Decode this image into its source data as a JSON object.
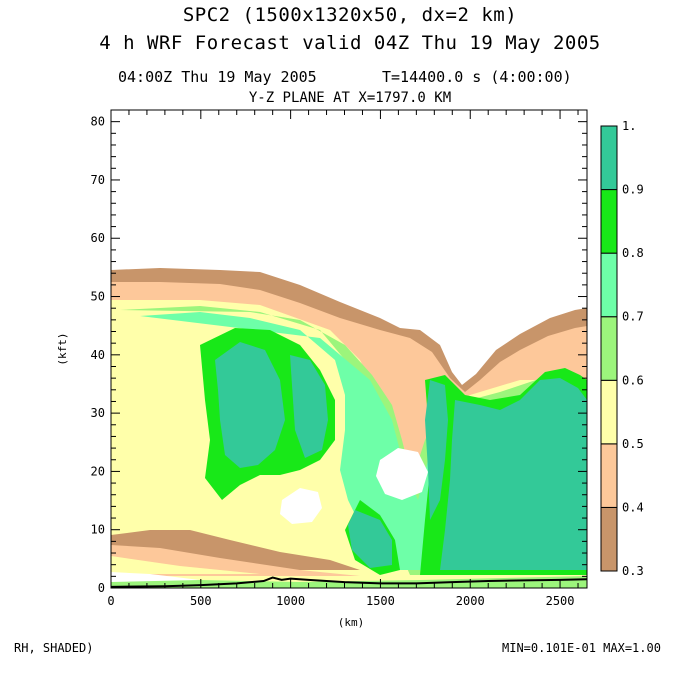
{
  "title_line1": "SPC2 (1500x1320x50, dx=2 km)",
  "title_line2": "4 h WRF Forecast valid 04Z Thu 19 May 2005",
  "time_label": "04:00Z Thu 19 May 2005",
  "timestep_label": "T=14400.0 s (4:00:00)",
  "plane_label": "Y-Z PLANE AT X=1797.0 KM",
  "footer_left": "RH, SHADED)",
  "footer_right": "MIN=0.101E-01 MAX=1.00",
  "colors": {
    "c03": "#c8956a",
    "c04": "#fdc89a",
    "c05": "#ffffaa",
    "c06": "#9cf57c",
    "c07": "#6effa8",
    "c08": "#18e818",
    "c09": "#33c998"
  },
  "chart_data": {
    "type": "heatmap",
    "title": "Y-Z PLANE AT X=1797.0 KM",
    "xlabel": "(km)",
    "ylabel": "(kft)",
    "xlim": [
      0,
      2650
    ],
    "ylim": [
      0,
      82
    ],
    "x_ticks": [
      0,
      500,
      1000,
      1500,
      2000,
      2500
    ],
    "y_ticks": [
      0,
      10,
      20,
      30,
      40,
      50,
      60,
      70,
      80
    ],
    "colorbar": {
      "levels": [
        0.3,
        0.4,
        0.5,
        0.6,
        0.7,
        0.8,
        0.9,
        1.0
      ],
      "labels": [
        "0.3",
        "0.4",
        "0.5",
        "0.6",
        "0.7",
        "0.8",
        "0.9",
        "1."
      ],
      "colors": [
        "#c8956a",
        "#fdc89a",
        "#ffffaa",
        "#9cf57c",
        "#6effa8",
        "#18e818",
        "#33c998"
      ]
    },
    "variable": "RH",
    "min": 0.0101,
    "max": 1.0,
    "terrain": [
      [
        0,
        0.2
      ],
      [
        300,
        0.3
      ],
      [
        500,
        0.5
      ],
      [
        700,
        0.8
      ],
      [
        850,
        1.2
      ],
      [
        900,
        1.8
      ],
      [
        950,
        1.4
      ],
      [
        1000,
        1.6
      ],
      [
        1100,
        1.4
      ],
      [
        1300,
        1.0
      ],
      [
        1500,
        0.8
      ],
      [
        1700,
        0.8
      ],
      [
        1900,
        1.0
      ],
      [
        2100,
        1.2
      ],
      [
        2300,
        1.3
      ],
      [
        2500,
        1.4
      ],
      [
        2650,
        1.5
      ]
    ]
  }
}
